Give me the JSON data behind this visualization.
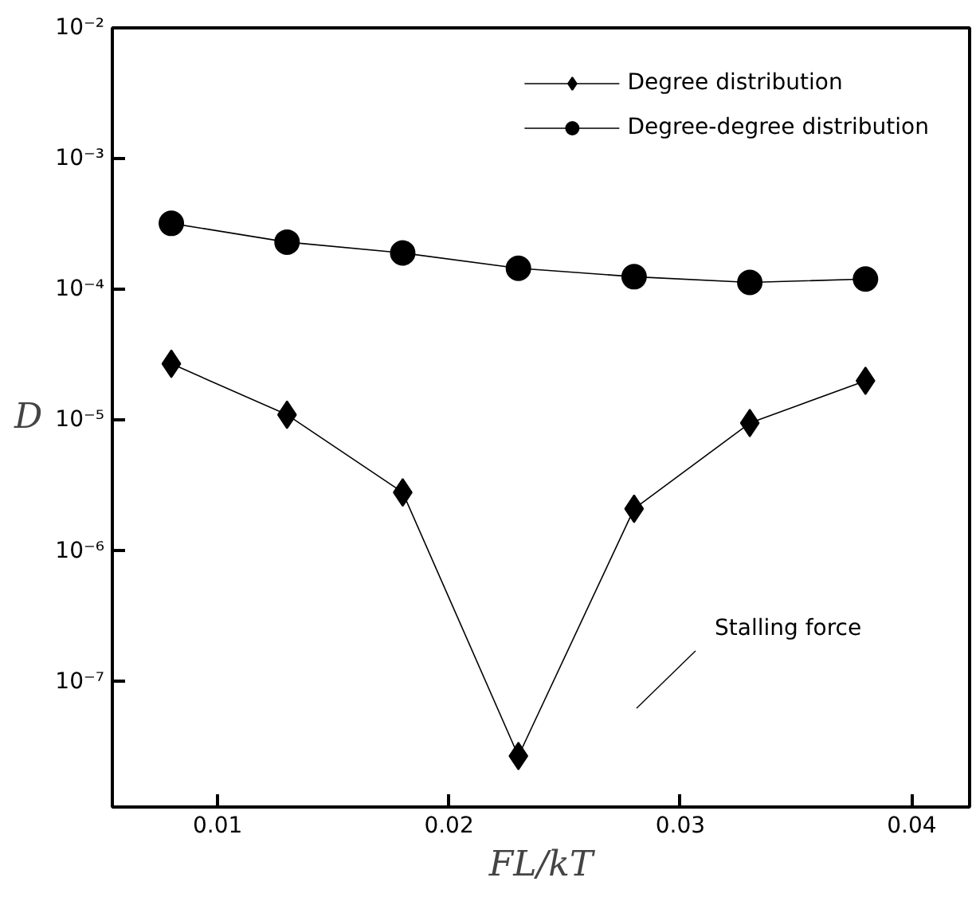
{
  "chart_data": {
    "type": "line",
    "xlabel": "FL/kT",
    "ylabel": "D",
    "log": "y",
    "x": [
      0.008,
      0.013,
      0.018,
      0.023,
      0.028,
      0.033,
      0.038
    ],
    "series": [
      {
        "name": "Degree distribution",
        "color": "#000000",
        "marker": "diamond",
        "values": [
          2.7e-05,
          1.1e-05,
          2.8e-06,
          2.7e-08,
          2.1e-06,
          9.5e-06,
          2e-05
        ]
      },
      {
        "name": "Degree-degree distribution",
        "color": "#000000",
        "marker": "circle",
        "values": [
          0.00032,
          0.00023,
          0.00019,
          0.000145,
          0.000125,
          0.000113,
          0.00012
        ]
      }
    ],
    "xlim": [
      0.00545,
      0.0425
    ],
    "xticks": [
      0.01,
      0.02,
      0.03,
      0.04
    ],
    "ylim": [
      1.1e-08,
      0.01
    ],
    "yticks": [
      {
        "value": 1e-07,
        "label": "10⁻⁷"
      },
      {
        "value": 1e-06,
        "label": "10⁻⁶"
      },
      {
        "value": 1e-05,
        "label": "10⁻⁵"
      },
      {
        "value": 0.0001,
        "label": "10⁻⁴"
      },
      {
        "value": 0.001,
        "label": "10⁻³"
      },
      {
        "value": 0.01,
        "label": "10⁻²"
      }
    ],
    "annotations": [
      "Stalling force"
    ],
    "legend": "top right",
    "grid": false,
    "line_style": "solid"
  }
}
